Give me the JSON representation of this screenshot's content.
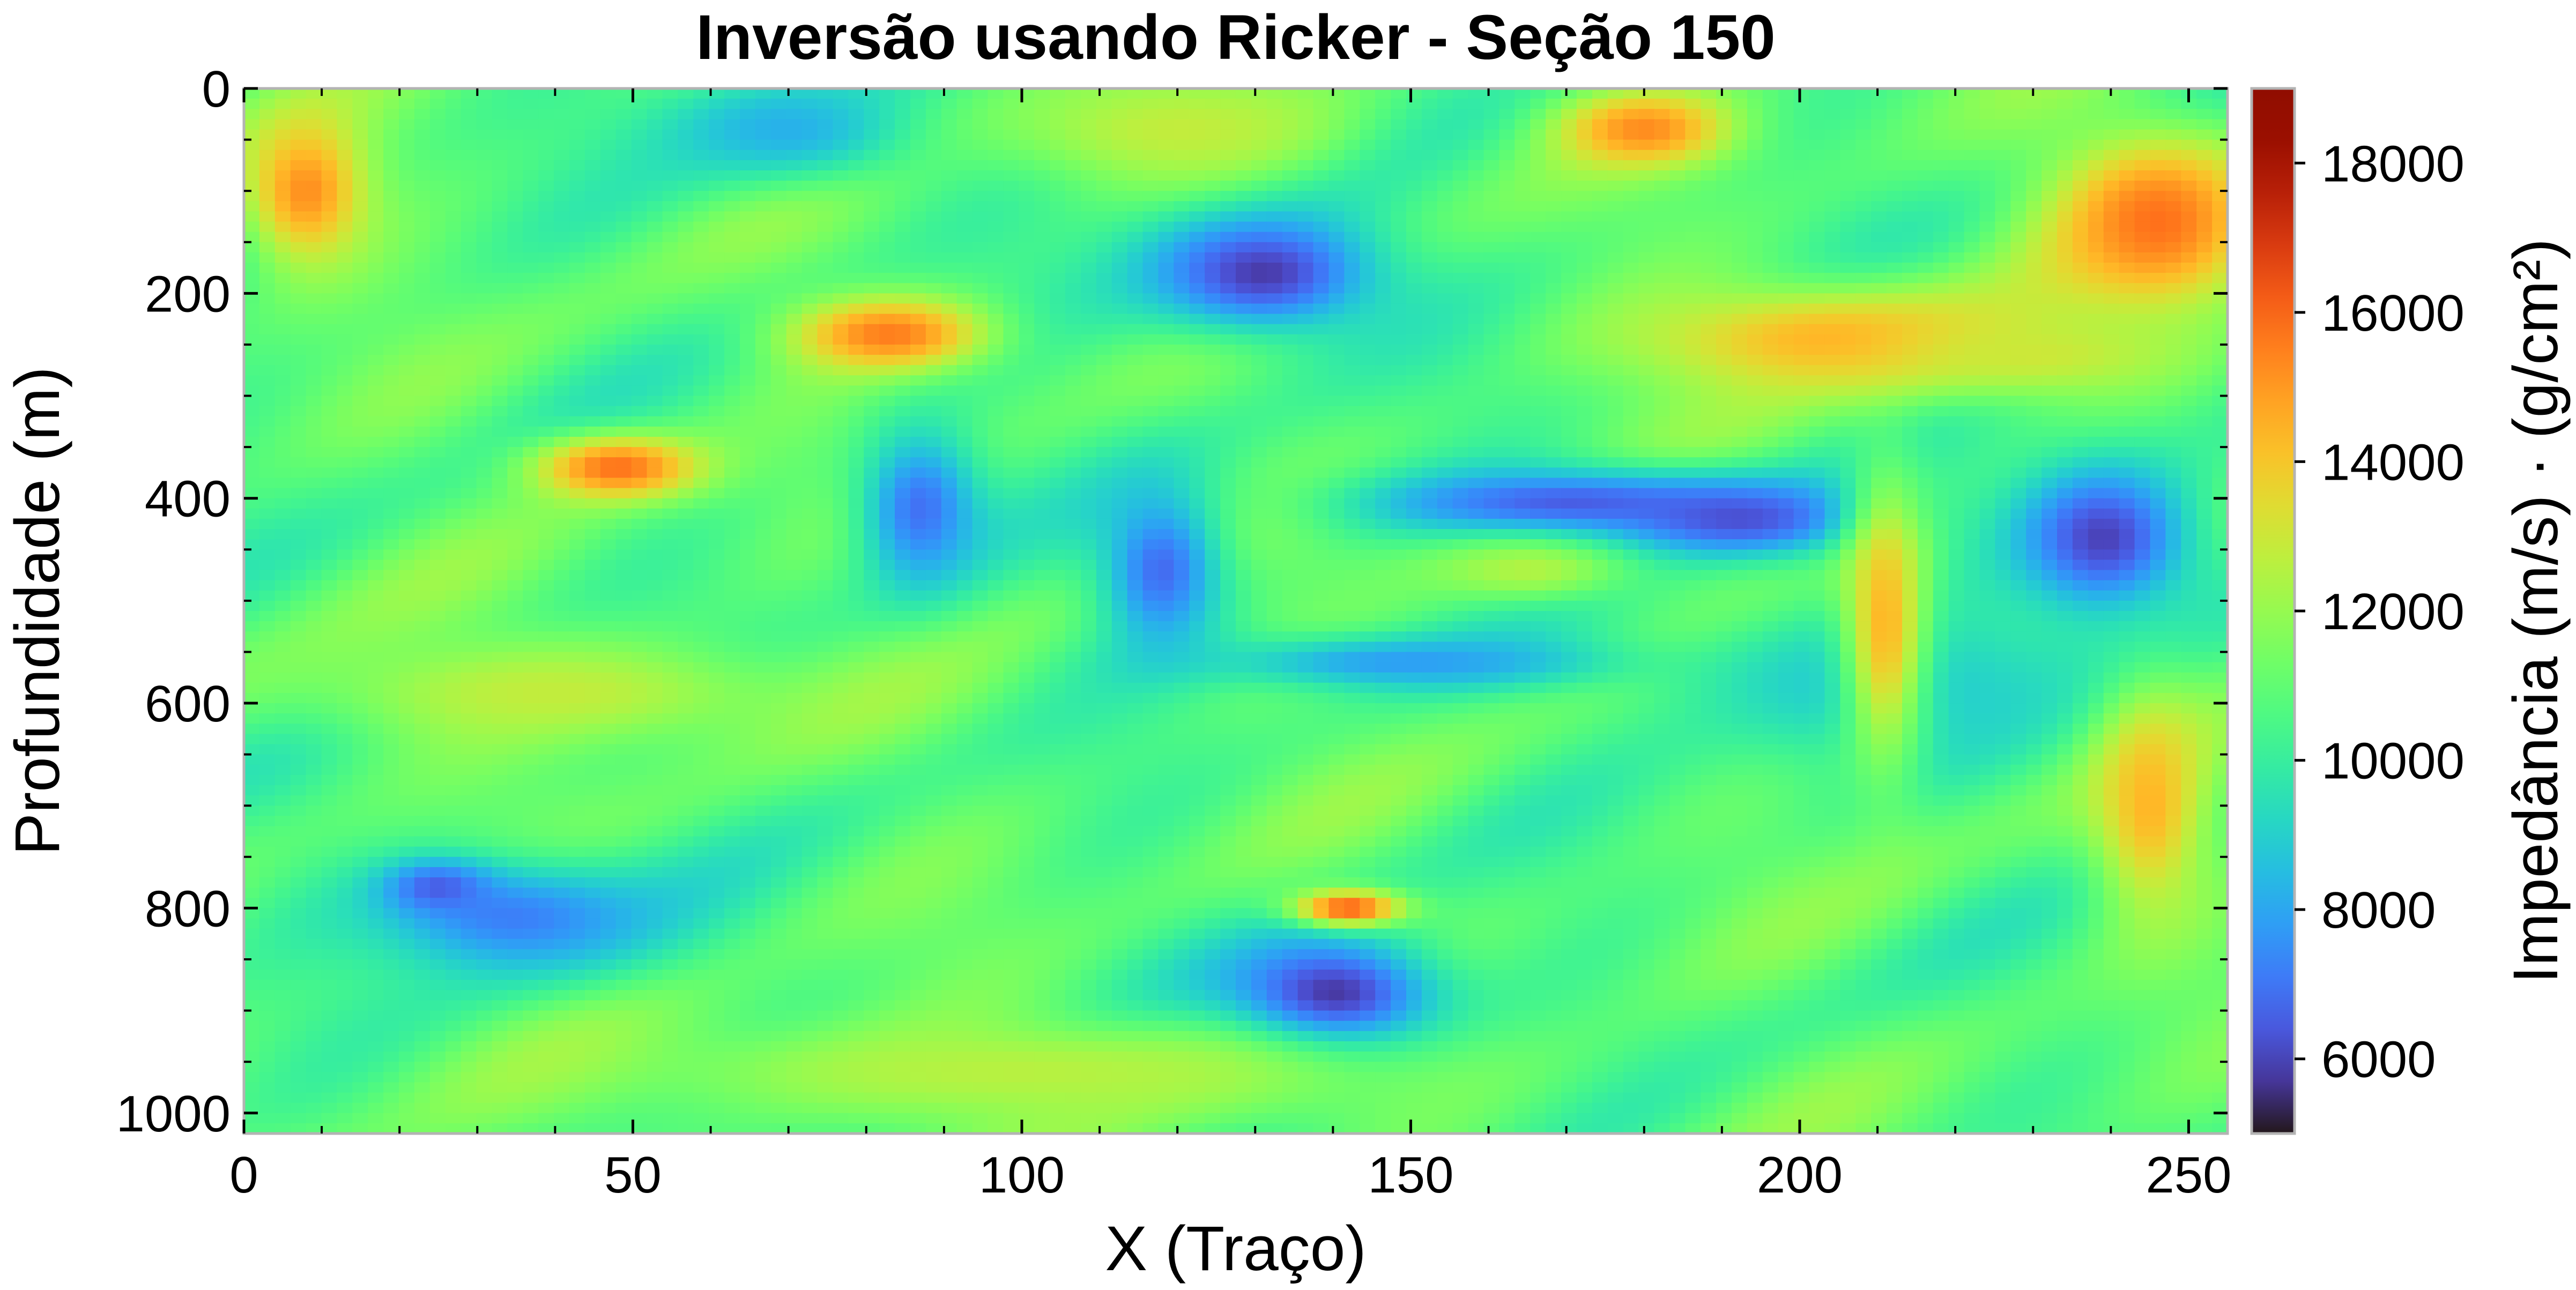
{
  "chart_data": {
    "type": "heatmap",
    "title": "Inversão usando Ricker - Seção 150",
    "xlabel": "X (Traço)",
    "ylabel": "Profundidade (m)",
    "colorbar_label": "Impedância (m/s) · (g/cm²)",
    "colormap": "turbo",
    "xlim": [
      0,
      255
    ],
    "ylim": [
      1020,
      0
    ],
    "x_ticks": [
      0,
      50,
      100,
      150,
      200,
      250
    ],
    "y_ticks": [
      0,
      200,
      400,
      600,
      800,
      1000
    ],
    "colorbar_ticks": [
      6000,
      8000,
      10000,
      12000,
      14000,
      16000,
      18000
    ],
    "clim": [
      5000,
      19000
    ],
    "background_value": 10800,
    "features": [
      {
        "cx": 140,
        "cy": 890,
        "rx": 16,
        "ry": 70,
        "value": 5200,
        "angle": 20
      },
      {
        "cx": 131,
        "cy": 180,
        "rx": 18,
        "ry": 70,
        "value": 5800,
        "angle": 0
      },
      {
        "cx": 239,
        "cy": 440,
        "rx": 14,
        "ry": 90,
        "value": 5900,
        "angle": -30
      },
      {
        "cx": 170,
        "cy": 405,
        "rx": 30,
        "ry": 40,
        "value": 6500,
        "angle": 0
      },
      {
        "cx": 192,
        "cy": 420,
        "rx": 18,
        "ry": 40,
        "value": 6200,
        "angle": 0
      },
      {
        "cx": 118,
        "cy": 470,
        "rx": 9,
        "ry": 90,
        "value": 6800,
        "angle": 0
      },
      {
        "cx": 87,
        "cy": 410,
        "rx": 9,
        "ry": 90,
        "value": 6900,
        "angle": 10
      },
      {
        "cx": 150,
        "cy": 560,
        "rx": 30,
        "ry": 30,
        "value": 7800,
        "angle": 0
      },
      {
        "cx": 35,
        "cy": 810,
        "rx": 22,
        "ry": 65,
        "value": 7200,
        "angle": 0
      },
      {
        "cx": 25,
        "cy": 780,
        "rx": 8,
        "ry": 30,
        "value": 6500,
        "angle": 0
      },
      {
        "cx": 70,
        "cy": 40,
        "rx": 20,
        "ry": 60,
        "value": 8200,
        "angle": 0
      },
      {
        "cx": 210,
        "cy": 580,
        "rx": 30,
        "ry": 90,
        "value": 8700,
        "angle": 0
      },
      {
        "cx": 246,
        "cy": 130,
        "rx": 16,
        "ry": 100,
        "value": 15800,
        "angle": 0
      },
      {
        "cx": 83,
        "cy": 240,
        "rx": 14,
        "ry": 40,
        "value": 15600,
        "angle": 0
      },
      {
        "cx": 48,
        "cy": 370,
        "rx": 12,
        "ry": 35,
        "value": 15800,
        "angle": 0
      },
      {
        "cx": 8,
        "cy": 100,
        "rx": 9,
        "ry": 80,
        "value": 15200,
        "angle": 0
      },
      {
        "cx": 180,
        "cy": 40,
        "rx": 12,
        "ry": 40,
        "value": 15300,
        "angle": 0
      },
      {
        "cx": 205,
        "cy": 245,
        "rx": 30,
        "ry": 60,
        "value": 14500,
        "angle": 0
      },
      {
        "cx": 142,
        "cy": 800,
        "rx": 8,
        "ry": 20,
        "value": 16200,
        "angle": 0
      },
      {
        "cx": 211,
        "cy": 520,
        "rx": 6,
        "ry": 160,
        "value": 14400,
        "angle": 0
      },
      {
        "cx": 245,
        "cy": 700,
        "rx": 8,
        "ry": 120,
        "value": 14400,
        "angle": 0
      },
      {
        "cx": 120,
        "cy": 40,
        "rx": 25,
        "ry": 60,
        "value": 12800,
        "angle": 0
      },
      {
        "cx": 165,
        "cy": 470,
        "rx": 15,
        "ry": 35,
        "value": 12500,
        "angle": 0
      },
      {
        "cx": 40,
        "cy": 590,
        "rx": 35,
        "ry": 60,
        "value": 12800,
        "angle": 0
      },
      {
        "cx": 100,
        "cy": 960,
        "rx": 60,
        "ry": 60,
        "value": 12600,
        "angle": 0
      },
      {
        "cx": 230,
        "cy": 260,
        "rx": 20,
        "ry": 40,
        "value": 13000,
        "angle": 0
      }
    ]
  }
}
